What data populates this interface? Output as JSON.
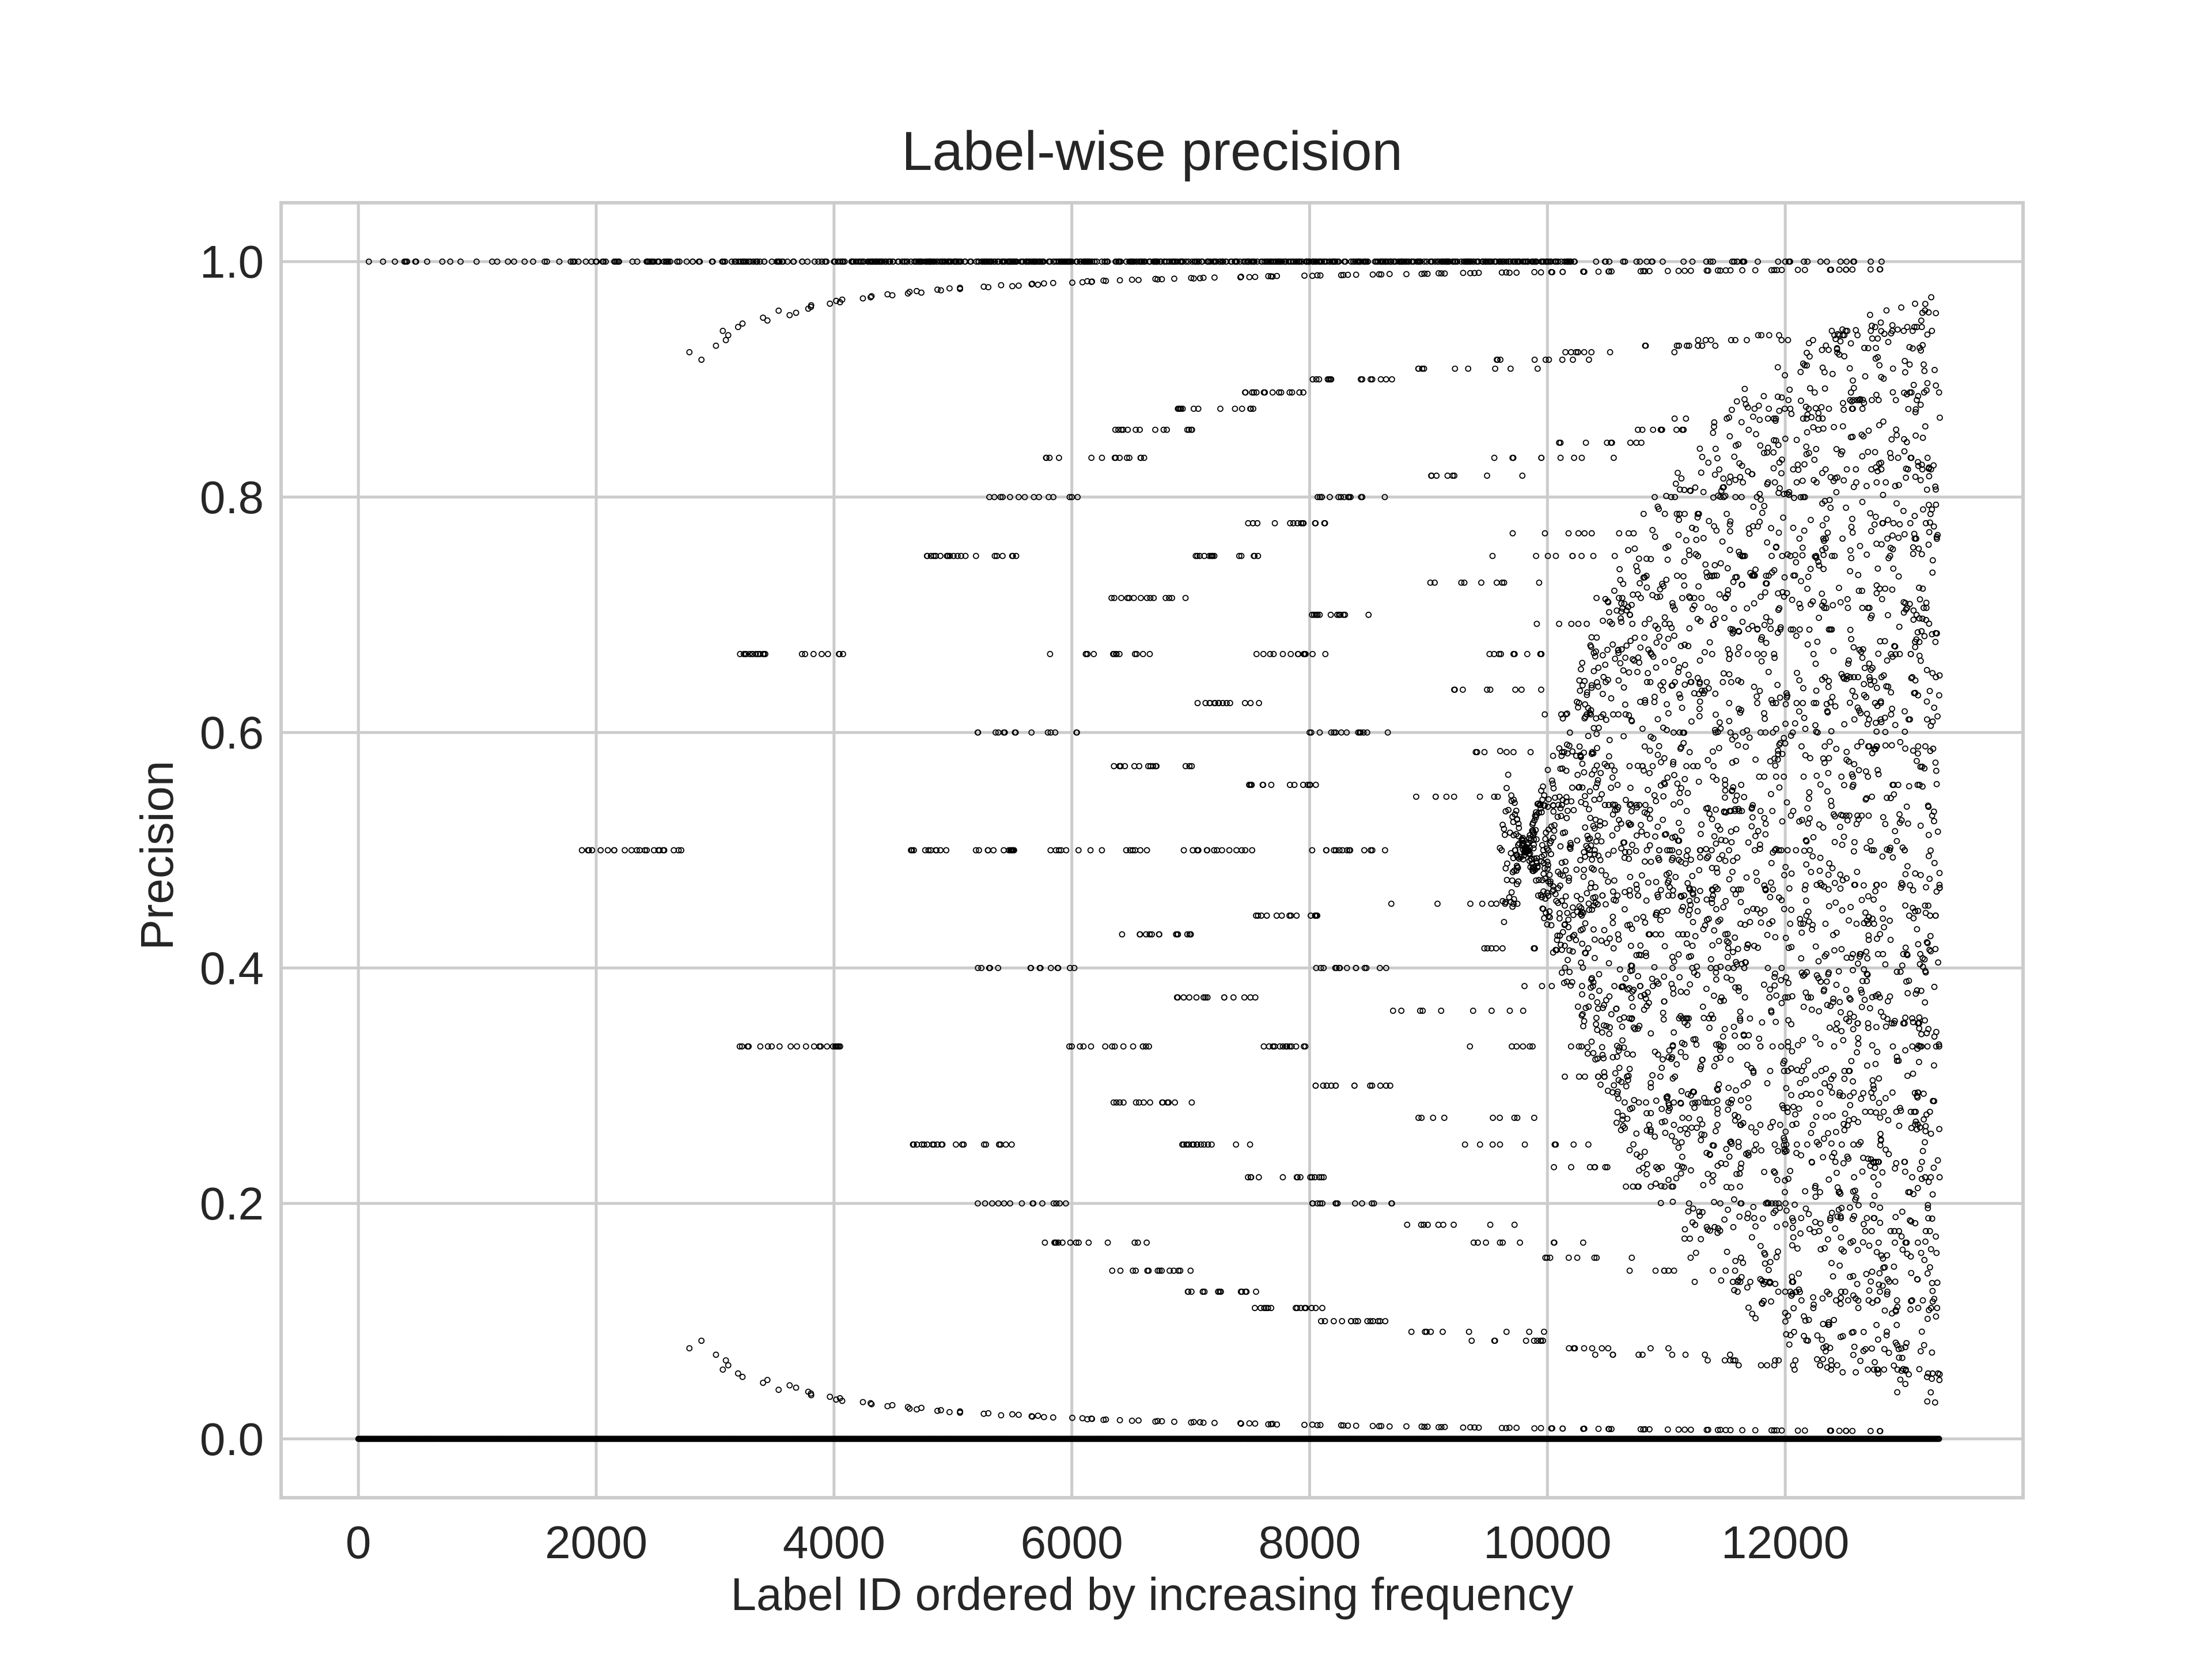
{
  "chart_data": {
    "type": "scatter",
    "title": "Label-wise precision",
    "xlabel": "Label ID ordered by increasing frequency",
    "ylabel": "Precision",
    "xlim": [
      -650,
      14000
    ],
    "ylim": [
      -0.05,
      1.05
    ],
    "x_ticks": [
      0,
      2000,
      4000,
      6000,
      8000,
      10000,
      12000
    ],
    "y_ticks": [
      0.0,
      0.2,
      0.4,
      0.6,
      0.8,
      1.0
    ],
    "x_tick_labels": [
      "0",
      "2000",
      "4000",
      "6000",
      "8000",
      "10000",
      "12000"
    ],
    "y_tick_labels": [
      "0.0",
      "0.2",
      "0.4",
      "0.6",
      "0.8",
      "1.0"
    ],
    "grid": true,
    "marker": "hollow-circle",
    "marker_color": "#000000",
    "num_labels": 13300,
    "summary": {
      "zero_precision_band": {
        "y": 0.0,
        "x_range": [
          0,
          13300
        ]
      },
      "perfect_precision_band": {
        "y": 1.0,
        "x_range": [
          0,
          12900
        ]
      },
      "points_with_intermediate_precision_begin_at_x": 1850,
      "dense_scatter_region_x": [
        10000,
        13300
      ]
    },
    "sample_points": [
      {
        "x": 60,
        "y": 1.0
      },
      {
        "x": 220,
        "y": 1.0
      },
      {
        "x": 600,
        "y": 1.0
      },
      {
        "x": 1150,
        "y": 1.0
      },
      {
        "x": 1950,
        "y": 1.0
      },
      {
        "x": 2050,
        "y": 0.5
      },
      {
        "x": 3400,
        "y": 0.667
      },
      {
        "x": 3500,
        "y": 0.333
      },
      {
        "x": 4250,
        "y": 0.75
      },
      {
        "x": 4400,
        "y": 0.25
      },
      {
        "x": 5000,
        "y": 0.6
      },
      {
        "x": 5100,
        "y": 0.4
      },
      {
        "x": 5150,
        "y": 0.2
      },
      {
        "x": 5200,
        "y": 0.8
      },
      {
        "x": 5650,
        "y": 0.833
      },
      {
        "x": 5700,
        "y": 0.167
      },
      {
        "x": 6050,
        "y": 0.857
      },
      {
        "x": 6100,
        "y": 0.143
      },
      {
        "x": 6500,
        "y": 0.875
      },
      {
        "x": 6500,
        "y": 0.125
      },
      {
        "x": 7150,
        "y": 0.9
      },
      {
        "x": 7150,
        "y": 0.1
      },
      {
        "x": 8100,
        "y": 0.929
      },
      {
        "x": 8100,
        "y": 0.071
      },
      {
        "x": 9700,
        "y": 0.963
      },
      {
        "x": 10000,
        "y": 0.035
      },
      {
        "x": 11000,
        "y": 0.63
      },
      {
        "x": 11500,
        "y": 0.42
      },
      {
        "x": 12000,
        "y": 0.75
      },
      {
        "x": 12500,
        "y": 0.3
      },
      {
        "x": 13000,
        "y": 0.88
      },
      {
        "x": 13250,
        "y": 0.55
      }
    ]
  }
}
